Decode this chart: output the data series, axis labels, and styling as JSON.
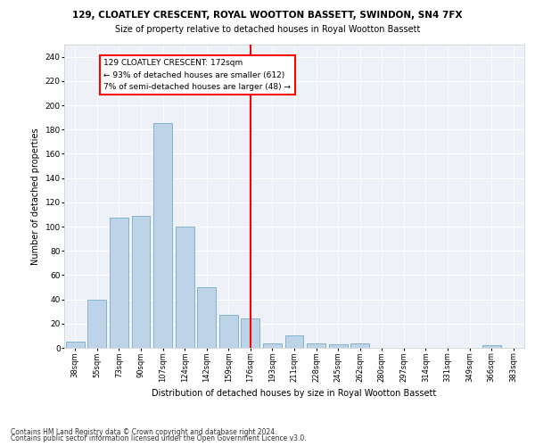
{
  "title1": "129, CLOATLEY CRESCENT, ROYAL WOOTTON BASSETT, SWINDON, SN4 7FX",
  "title2": "Size of property relative to detached houses in Royal Wootton Bassett",
  "xlabel": "Distribution of detached houses by size in Royal Wootton Bassett",
  "ylabel": "Number of detached properties",
  "categories": [
    "38sqm",
    "55sqm",
    "73sqm",
    "90sqm",
    "107sqm",
    "124sqm",
    "142sqm",
    "159sqm",
    "176sqm",
    "193sqm",
    "211sqm",
    "228sqm",
    "245sqm",
    "262sqm",
    "280sqm",
    "297sqm",
    "314sqm",
    "331sqm",
    "349sqm",
    "366sqm",
    "383sqm"
  ],
  "values": [
    5,
    40,
    107,
    109,
    185,
    100,
    50,
    27,
    24,
    4,
    10,
    4,
    3,
    4,
    0,
    0,
    0,
    0,
    0,
    2,
    0
  ],
  "bar_color": "#bdd4e8",
  "bar_edge_color": "#7aaac8",
  "vline_index": 8,
  "annotation_text": "129 CLOATLEY CRESCENT: 172sqm\n← 93% of detached houses are smaller (612)\n7% of semi-detached houses are larger (48) →",
  "footer1": "Contains HM Land Registry data © Crown copyright and database right 2024.",
  "footer2": "Contains public sector information licensed under the Open Government Licence v3.0.",
  "ylim": [
    0,
    250
  ],
  "yticks": [
    0,
    20,
    40,
    60,
    80,
    100,
    120,
    140,
    160,
    180,
    200,
    220,
    240
  ]
}
